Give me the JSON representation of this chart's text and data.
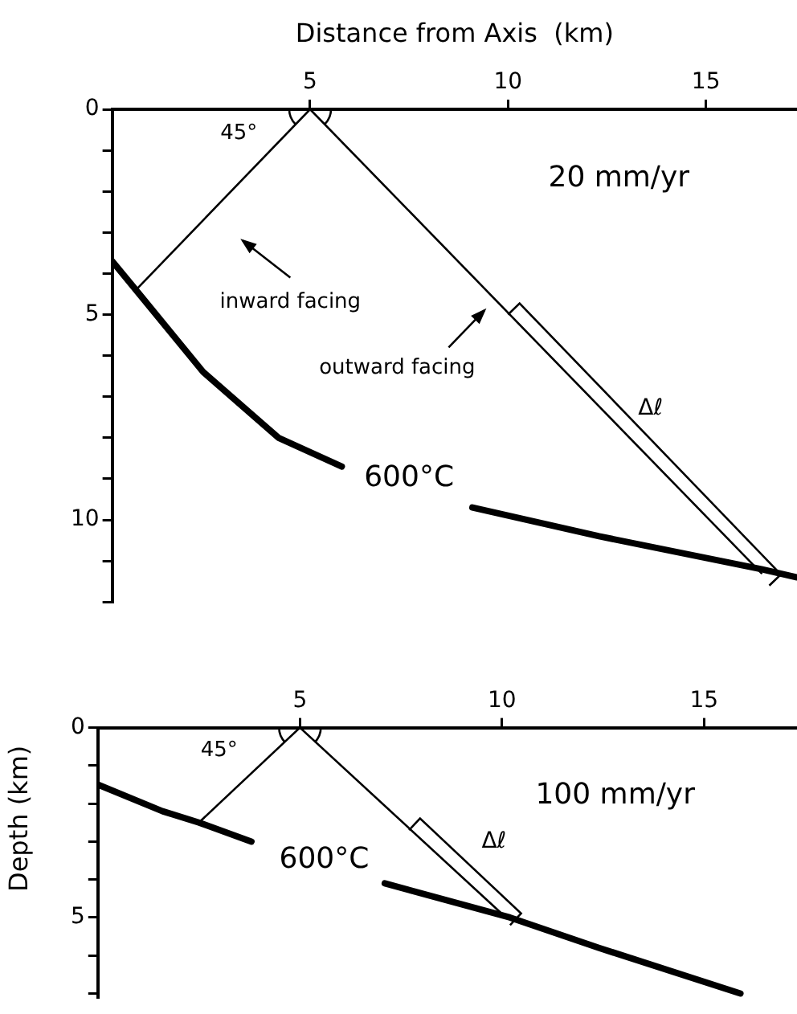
{
  "chart_data": [
    {
      "type": "line",
      "xlabel": "Distance from Axis  (km)",
      "ylabel": "Depth   (km)",
      "xlim": [
        0,
        17.3
      ],
      "xticks": [
        5,
        10,
        15
      ],
      "ylim": [
        12,
        0
      ],
      "yticks": [
        0,
        {
          "value": 1,
          "label": null
        },
        {
          "value": 2,
          "label": null
        },
        {
          "value": 3,
          "label": null
        },
        {
          "value": 4,
          "label": null
        },
        5,
        {
          "value": 6,
          "label": null
        },
        {
          "value": 7,
          "label": null
        },
        {
          "value": 8,
          "label": null
        },
        {
          "value": 9,
          "label": null
        },
        10,
        {
          "value": 11,
          "label": null
        },
        {
          "value": 12,
          "label": null
        }
      ],
      "grid": false,
      "legend": false,
      "marker": "none",
      "line_style": "solid",
      "series": [
        {
          "color": "#000000",
          "x": [
            0,
            0.6,
            2.3,
            4.2,
            5.8,
            7.5,
            9.1,
            12.3,
            16.4,
            17.3
          ],
          "values": [
            3.7,
            4.4,
            6.4,
            8.0,
            8.7,
            null,
            9.7,
            10.4,
            11.2,
            11.4
          ]
        },
        {
          "color": "#000000",
          "x": [
            0.6,
            5
          ],
          "values": [
            4.4,
            0
          ]
        },
        {
          "color": "#000000",
          "x": [
            5,
            16.4
          ],
          "values": [
            0,
            11.3
          ]
        }
      ],
      "annotations": [
        "20 mm/yr",
        "45°",
        "inward facing",
        "outward facing",
        "Δℓ",
        "600°C"
      ]
    },
    {
      "type": "line",
      "xlim": [
        0,
        17.3
      ],
      "xticks": [
        5,
        10,
        15
      ],
      "ylim": [
        7.1,
        0
      ],
      "yticks": [
        0,
        {
          "value": 1,
          "label": null
        },
        {
          "value": 2,
          "label": null
        },
        {
          "value": 3,
          "label": null
        },
        {
          "value": 4,
          "label": null
        },
        5,
        {
          "value": 6,
          "label": null
        },
        {
          "value": 7,
          "label": null
        }
      ],
      "grid": false,
      "legend": false,
      "marker": "none",
      "line_style": "solid",
      "series": [
        {
          "color": "#000000",
          "x": [
            0,
            1.6,
            2.5,
            3.8,
            5.4,
            7.1,
            10.2,
            12.4,
            15.9
          ],
          "values": [
            1.5,
            2.2,
            2.5,
            3.0,
            null,
            4.1,
            5.0,
            5.8,
            7.0
          ]
        },
        {
          "color": "#000000",
          "x": [
            2.5,
            5
          ],
          "values": [
            2.5,
            0
          ]
        },
        {
          "color": "#000000",
          "x": [
            5,
            10.1
          ],
          "values": [
            0,
            5.0
          ]
        }
      ],
      "annotations": [
        "100 mm/yr",
        "45°",
        "Δℓ",
        "600°C"
      ]
    }
  ]
}
